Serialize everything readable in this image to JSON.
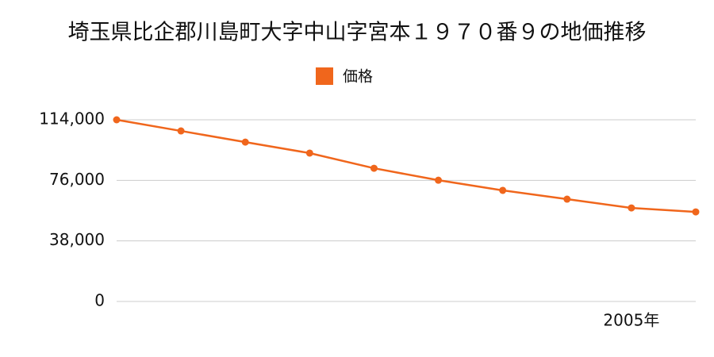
{
  "chart_data": {
    "type": "line",
    "title": "埼玉県比企郡川島町大字中山字宮本１９７０番９の地価推移",
    "categories": [
      null,
      null,
      null,
      null,
      null,
      null,
      null,
      null,
      "2005年",
      null
    ],
    "series": [
      {
        "name": "価格",
        "color": "#f0661c",
        "values": [
          114000,
          107000,
          100000,
          93100,
          83600,
          76100,
          69700,
          64200,
          58700,
          56200
        ]
      }
    ],
    "ylim": [
      0,
      114000
    ],
    "yticks": [
      0,
      {
        "value": 38000,
        "label": "38,000"
      },
      {
        "value": 76000,
        "label": "76,000"
      },
      {
        "value": 114000,
        "label": "114,000"
      }
    ],
    "grid": true
  }
}
